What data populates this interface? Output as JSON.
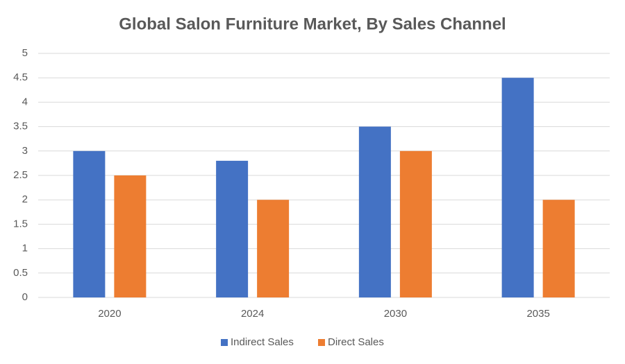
{
  "chart_data": {
    "type": "bar",
    "title": "Global Salon Furniture Market, By Sales Channel",
    "categories": [
      "2020",
      "2024",
      "2030",
      "2035"
    ],
    "series": [
      {
        "name": "Indirect Sales",
        "color": "#4472c4",
        "values": [
          3,
          2.8,
          3.5,
          4.5
        ]
      },
      {
        "name": "Direct Sales",
        "color": "#ed7d31",
        "values": [
          2.5,
          2,
          3,
          2
        ]
      }
    ],
    "ylim": [
      0,
      5
    ],
    "yticks": [
      0,
      0.5,
      1,
      1.5,
      2,
      2.5,
      3,
      3.5,
      4,
      4.5,
      5
    ],
    "grid": true,
    "legend": "bottom"
  }
}
